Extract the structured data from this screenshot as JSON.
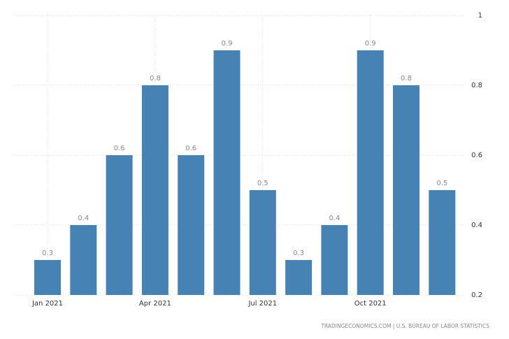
{
  "chart_data": {
    "type": "bar",
    "categories": [
      "Jan 2021",
      null,
      null,
      "Apr 2021",
      null,
      null,
      "Jul 2021",
      null,
      null,
      "Oct 2021",
      null,
      null
    ],
    "values": [
      0.3,
      0.4,
      0.6,
      0.8,
      0.6,
      0.9,
      0.5,
      0.3,
      0.4,
      0.9,
      0.8,
      0.5
    ],
    "color": "#4682b4",
    "ylim": [
      0.2,
      1
    ],
    "yticks": [
      0.2,
      0.4,
      0.6,
      0.8,
      1
    ],
    "grid": true,
    "source": "TRADINGECONOMICS.COM | U.S. BUREAU OF LABOR STATISTICS"
  }
}
